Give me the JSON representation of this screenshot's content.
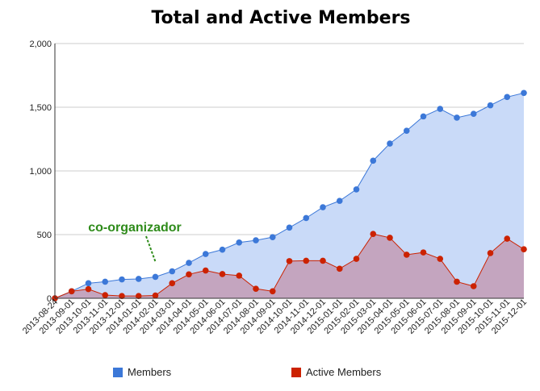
{
  "chart_data": {
    "type": "area",
    "title": "Total and Active Members",
    "xlabel": "",
    "ylabel": "",
    "ylim": [
      0,
      2000
    ],
    "y_ticks": [
      "0",
      "500",
      "1,000",
      "1,500",
      "2,000"
    ],
    "grid": true,
    "legend_position": "bottom",
    "x": [
      "2013-08-24",
      "2013-09-01",
      "2013-10-01",
      "2013-11-01",
      "2013-12-01",
      "2014-01-01",
      "2014-02-01",
      "2014-03-01",
      "2014-04-01",
      "2014-05-01",
      "2014-06-01",
      "2014-07-01",
      "2014-08-01",
      "2014-09-01",
      "2014-10-01",
      "2014-11-01",
      "2014-12-01",
      "2015-01-01",
      "2015-02-01",
      "2015-03-01",
      "2015-04-01",
      "2015-05-01",
      "2015-06-01",
      "2015-07-01",
      "2015-08-01",
      "2015-09-01",
      "2015-10-01",
      "2015-11-01",
      "2015-12-01"
    ],
    "series": [
      {
        "name": "Members",
        "color": "#3c78d8",
        "fill": "#c9daf8",
        "values": [
          0,
          55,
          118,
          130,
          148,
          152,
          168,
          212,
          278,
          348,
          382,
          438,
          455,
          480,
          555,
          630,
          715,
          765,
          855,
          1080,
          1215,
          1315,
          1428,
          1487,
          1418,
          1448,
          1515,
          1580,
          1612
        ]
      },
      {
        "name": "Active Members",
        "color": "#cc2200",
        "fill": "#c4a5bf",
        "values": [
          0,
          55,
          72,
          25,
          18,
          18,
          22,
          118,
          188,
          218,
          190,
          178,
          75,
          55,
          292,
          295,
          295,
          232,
          310,
          505,
          475,
          342,
          360,
          310,
          130,
          95,
          355,
          468,
          385
        ]
      }
    ],
    "annotations": [
      {
        "text": "co-organizador",
        "x": "2014-02-01",
        "color": "#2e8b1a"
      }
    ]
  }
}
